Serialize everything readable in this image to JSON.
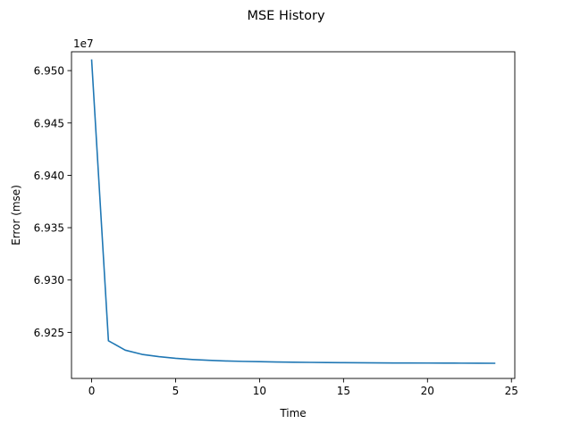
{
  "chart_data": {
    "type": "line",
    "title": "MSE History",
    "xlabel": "Time",
    "ylabel": "Error (mse)",
    "y_offset_label": "1e7",
    "xlim": [
      -1.2,
      25.2
    ],
    "ylim": [
      69206000.0,
      69518000.0
    ],
    "x_ticks": [
      0,
      5,
      10,
      15,
      20,
      25
    ],
    "y_ticks": [
      69250000.0,
      69300000.0,
      69350000.0,
      69400000.0,
      69450000.0,
      69500000.0
    ],
    "x_tick_labels": [
      "0",
      "5",
      "10",
      "15",
      "20",
      "25"
    ],
    "y_tick_labels": [
      "6.925",
      "6.930",
      "6.935",
      "6.940",
      "6.945",
      "6.950"
    ],
    "grid": false,
    "legend": "none",
    "series": [
      {
        "color": "#1f77b4",
        "x": [
          0,
          1,
          2,
          3,
          4,
          5,
          6,
          7,
          8,
          9,
          10,
          11,
          12,
          13,
          14,
          15,
          16,
          17,
          18,
          19,
          20,
          21,
          22,
          23,
          24
        ],
        "y": [
          69510000,
          69242000,
          69233000,
          69229000,
          69226800,
          69225200,
          69224100,
          69223300,
          69222700,
          69222300,
          69222000,
          69221700,
          69221500,
          69221350,
          69221200,
          69221100,
          69221000,
          69220900,
          69220800,
          69220750,
          69220700,
          69220650,
          69220600,
          69220550,
          69220500
        ]
      }
    ]
  }
}
